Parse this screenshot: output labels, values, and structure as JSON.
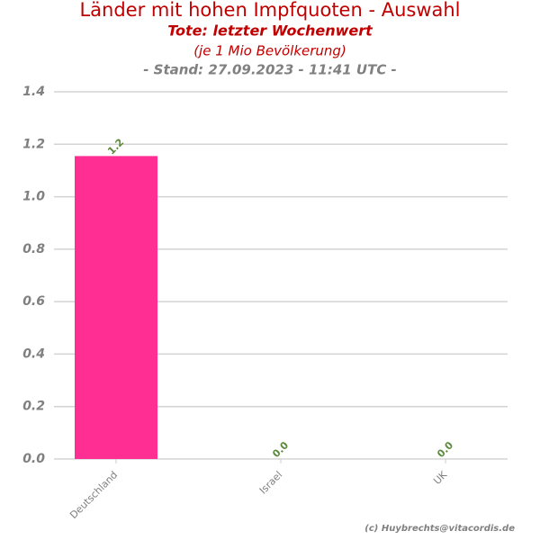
{
  "chart_data": {
    "type": "bar",
    "title": "Länder mit hohen Impfquoten - Auswahl",
    "subtitle": "Tote: letzter Wochenwert",
    "subtitle2": "(je 1 Mio Bevölkerung)",
    "subtitle3": "- Stand: 27.09.2023 - 11:41 UTC -",
    "credit": "(c) Huybrechts@vitacordis.de",
    "categories": [
      "Deutschland",
      "Israel",
      "UK"
    ],
    "values": [
      1.155,
      0,
      0
    ],
    "value_labels": [
      "1.2",
      "0.0",
      "0.0"
    ],
    "color": "#ff2e92",
    "ylim": [
      0,
      1.4
    ],
    "yticks": [
      {
        "value": 0,
        "label": "0.0"
      },
      0.2,
      0.4,
      0.6,
      0.8,
      {
        "value": 1,
        "label": "1.0"
      },
      1.2,
      1.4
    ],
    "grid": true
  }
}
